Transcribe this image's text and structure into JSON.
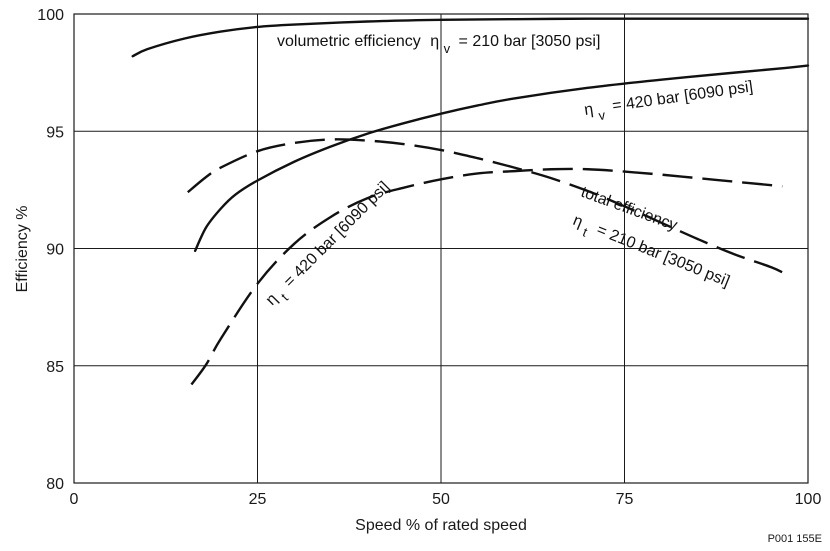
{
  "chart_data": {
    "type": "line",
    "title": "",
    "xlabel": "Speed % of rated speed",
    "ylabel": "Efficiency  %",
    "xlim": [
      0,
      100
    ],
    "ylim": [
      80,
      100
    ],
    "xticks": [
      "0",
      "25",
      "50",
      "75",
      "100"
    ],
    "yticks": [
      "80",
      "85",
      "90",
      "95",
      "100"
    ],
    "grid": true,
    "series": [
      {
        "style": "solid",
        "x": [
          8,
          10,
          15,
          20,
          25,
          30,
          40,
          50,
          60,
          70,
          80,
          90,
          100
        ],
        "y": [
          98.2,
          98.5,
          98.95,
          99.25,
          99.45,
          99.55,
          99.68,
          99.75,
          99.78,
          99.8,
          99.8,
          99.8,
          99.8
        ]
      },
      {
        "style": "solid",
        "x": [
          16.5,
          18,
          20,
          22,
          25,
          30,
          35,
          40,
          45,
          50,
          55,
          60,
          70,
          80,
          90,
          97,
          100
        ],
        "y": [
          89.9,
          90.9,
          91.7,
          92.3,
          92.9,
          93.7,
          94.35,
          94.9,
          95.35,
          95.75,
          96.1,
          96.4,
          96.85,
          97.2,
          97.5,
          97.7,
          97.8
        ]
      },
      {
        "style": "dashed",
        "x": [
          15.5,
          18,
          20,
          25,
          30,
          35,
          40,
          45,
          50,
          55,
          60,
          65,
          70,
          75,
          80,
          85,
          90,
          95,
          97
        ],
        "y": [
          92.4,
          93.05,
          93.45,
          94.15,
          94.5,
          94.65,
          94.6,
          94.45,
          94.2,
          93.85,
          93.45,
          93.0,
          92.45,
          91.8,
          91.1,
          90.4,
          89.75,
          89.2,
          88.9
        ]
      },
      {
        "style": "dashed",
        "x": [
          16,
          18,
          20,
          25,
          30,
          35,
          40,
          45,
          50,
          55,
          60,
          65,
          70,
          75,
          80,
          85,
          90,
          95,
          96.5
        ],
        "y": [
          84.2,
          85.05,
          86.15,
          88.5,
          90.2,
          91.35,
          92.15,
          92.6,
          92.95,
          93.2,
          93.3,
          93.38,
          93.38,
          93.28,
          93.15,
          93.0,
          92.85,
          92.7,
          92.65
        ]
      }
    ],
    "annotations": {
      "volumetric_label": "volumetric efficiency",
      "volumetric_210": "= 210 bar [3050 psi]",
      "volumetric_420": "= 420 bar [6090 psi]",
      "total_label": "total efficiency",
      "total_210": "= 210 bar [3050 psi]",
      "total_420": "= 420 bar [6090 psi]",
      "eta": "η",
      "sub_v": "v",
      "sub_t": "t"
    }
  },
  "figure_code": "P001 155E"
}
